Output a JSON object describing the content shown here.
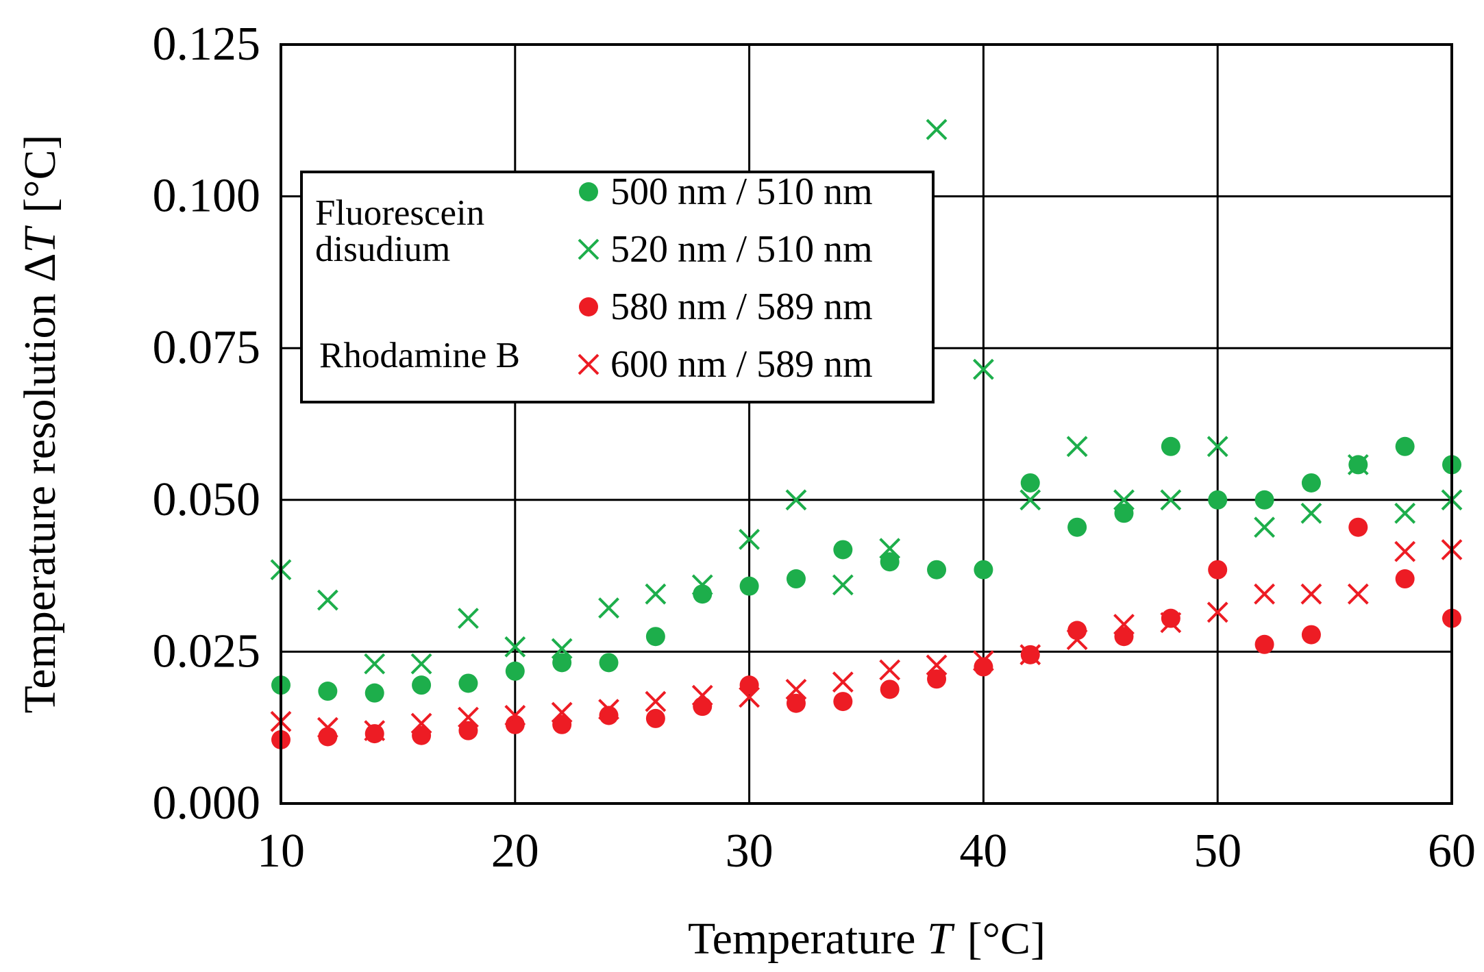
{
  "colors": {
    "green": "#1DAE4B",
    "red": "#ED1C24",
    "axis": "#000000",
    "background": "#FFFFFF"
  },
  "chart_data": {
    "type": "scatter",
    "title": "",
    "xlabel": {
      "text": "Temperature ",
      "symbol": "T",
      "unit": "[°C]"
    },
    "ylabel": {
      "text": "Temperature resolution Δ",
      "symbol": "T",
      "unit": "[°C]"
    },
    "xlim": [
      10,
      60
    ],
    "ylim": [
      0,
      0.125
    ],
    "xticks": [
      10,
      20,
      30,
      40,
      50,
      60
    ],
    "xtick_labels": [
      "10",
      "20",
      "30",
      "40",
      "50",
      "60"
    ],
    "yticks": [
      0,
      0.025,
      0.05,
      0.075,
      0.1,
      0.125
    ],
    "ytick_labels": [
      "0.000",
      "0.025",
      "0.050",
      "0.075",
      "0.100",
      "0.125"
    ],
    "grid": true,
    "legend": {
      "position": "upper-left",
      "group_labels": [
        {
          "lines": [
            "Fluorescein",
            "disudium"
          ]
        },
        {
          "lines": [
            "Rhodamine B"
          ]
        }
      ]
    },
    "x": [
      10,
      12,
      14,
      16,
      18,
      20,
      22,
      24,
      26,
      28,
      30,
      32,
      34,
      36,
      38,
      40,
      42,
      44,
      46,
      48,
      50,
      52,
      54,
      56,
      58,
      60
    ],
    "series": [
      {
        "name": "500 nm / 510 nm",
        "group": "Fluorescein disudium",
        "marker": "circle",
        "color": "#1DAE4B",
        "values": [
          0.0195,
          0.0185,
          0.0182,
          0.0195,
          0.0198,
          0.0218,
          0.0232,
          0.0232,
          0.0275,
          0.0345,
          0.0358,
          0.037,
          0.0418,
          0.0398,
          0.0385,
          0.0385,
          0.0528,
          0.0455,
          0.0478,
          0.0588,
          0.05,
          0.05,
          0.0528,
          0.0558,
          0.0588,
          0.0558
        ]
      },
      {
        "name": "520 nm / 510 nm",
        "group": "Fluorescein disudium",
        "marker": "x",
        "color": "#1DAE4B",
        "values": [
          0.0385,
          0.0335,
          0.023,
          0.023,
          0.0305,
          0.0258,
          0.0255,
          0.0322,
          0.0345,
          0.036,
          0.0435,
          0.05,
          0.036,
          0.042,
          0.111,
          0.0715,
          0.05,
          0.0588,
          0.05,
          0.05,
          0.0588,
          0.0455,
          0.0478,
          0.0558,
          0.0478,
          0.05
        ]
      },
      {
        "name": "580 nm / 589 nm",
        "group": "Rhodamine B",
        "marker": "circle",
        "color": "#ED1C24",
        "values": [
          0.0105,
          0.011,
          0.0115,
          0.0112,
          0.012,
          0.013,
          0.013,
          0.0145,
          0.014,
          0.016,
          0.0195,
          0.0165,
          0.0168,
          0.0188,
          0.0205,
          0.0225,
          0.0245,
          0.0285,
          0.0275,
          0.0305,
          0.0385,
          0.0262,
          0.0278,
          0.0455,
          0.037,
          0.0305
        ]
      },
      {
        "name": "600 nm / 589 nm",
        "group": "Rhodamine B",
        "marker": "x",
        "color": "#ED1C24",
        "values": [
          0.0135,
          0.0125,
          0.012,
          0.0132,
          0.0142,
          0.0145,
          0.015,
          0.0155,
          0.0168,
          0.0178,
          0.0175,
          0.0188,
          0.02,
          0.022,
          0.0228,
          0.0235,
          0.0245,
          0.027,
          0.0295,
          0.0298,
          0.0315,
          0.0345,
          0.0345,
          0.0345,
          0.0415,
          0.0418
        ]
      }
    ]
  }
}
